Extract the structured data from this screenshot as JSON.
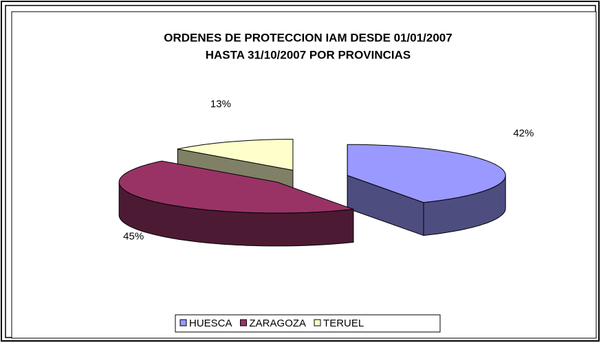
{
  "chart_data": {
    "type": "pie",
    "title": [
      "ORDENES DE PROTECCION IAM DESDE 01/01/2007",
      "HASTA 31/10/2007 POR PROVINCIAS"
    ],
    "categories": [
      "HUESCA",
      "ZARAGOZA",
      "TERUEL"
    ],
    "values": [
      42,
      45,
      13
    ],
    "value_labels": [
      "42%",
      "45%",
      "13%"
    ],
    "colors": [
      "#9999ff",
      "#993366",
      "#ffffcc"
    ],
    "legend": "bottom"
  }
}
